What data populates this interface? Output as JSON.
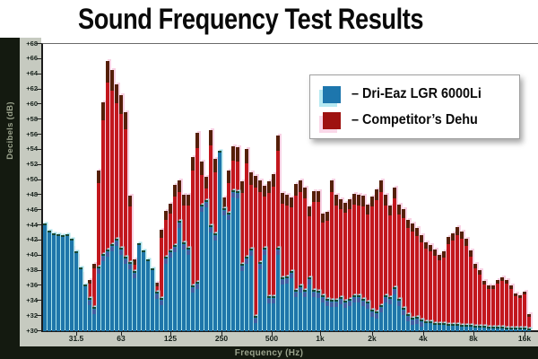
{
  "title": "Sound Frequency Test Results",
  "legend": {
    "items": [
      {
        "label": "– Dri-Eaz LGR 6000Li",
        "color": "#1d76ad",
        "halo": "#b6e9f2"
      },
      {
        "label": "– Competitor’s Dehu",
        "color": "#9e1210",
        "halo": "#fad8e8"
      }
    ]
  },
  "chart_data": {
    "type": "bar",
    "title": "Sound Frequency Test Results",
    "xlabel": "Frequency (Hz)",
    "ylabel": "Decibels (dB)",
    "x_scale": "log, narrow-band bars (~1/11 octave) from ~20 Hz to 16 kHz",
    "x_tick_labels": [
      "31.5",
      "63",
      "125",
      "250",
      "500",
      "1k",
      "2k",
      "4k",
      "8k",
      "16k"
    ],
    "y_tick_labels": [
      "+68",
      "+66",
      "+64",
      "+62",
      "+60",
      "+58",
      "+56",
      "+54",
      "+52",
      "+50",
      "+48",
      "+46",
      "+44",
      "+42",
      "+40",
      "+38",
      "+36",
      "+34",
      "+32",
      "+30"
    ],
    "ylim": [
      30,
      68
    ],
    "grid": false,
    "legend_position": "top-right",
    "series": [
      {
        "name": "Dri-Eaz LGR 6000Li",
        "color": "#1e76aa",
        "values": [
          44.2,
          43.3,
          42.9,
          42.8,
          42.7,
          42.8,
          42.2,
          40.6,
          38.4,
          36.2,
          34.4,
          33.2,
          38.6,
          40.2,
          40.8,
          41.5,
          42.2,
          41.0,
          39.8,
          39.1,
          37.9,
          41.6,
          40.7,
          39.5,
          38.3,
          35.2,
          34.4,
          39.9,
          40.7,
          41.4,
          44.6,
          41.8,
          41.0,
          36.0,
          36.5,
          46.7,
          47.3,
          44.0,
          43.0,
          53.9,
          46.3,
          45.7,
          48.7,
          48.5,
          38.9,
          39.9,
          40.9,
          32.0,
          39.1,
          41.0,
          34.6,
          34.6,
          41.0,
          37.1,
          37.3,
          37.9,
          35.5,
          36.0,
          35.5,
          37.1,
          35.5,
          35.4,
          34.8,
          34.3,
          34.1,
          34.2,
          34.5,
          34.0,
          34.3,
          34.7,
          34.7,
          34.3,
          33.9,
          32.8,
          32.6,
          33.5,
          34.8,
          34.5,
          35.8,
          34.3,
          33.1,
          32.3,
          31.8,
          31.9,
          31.5,
          31.3,
          31.3,
          31.1,
          31.1,
          31.1,
          30.9,
          30.9,
          30.9,
          30.8,
          30.8,
          30.8,
          30.7,
          30.7,
          30.7,
          30.6,
          30.6,
          30.6,
          30.6,
          30.5,
          30.5,
          30.5,
          30.5,
          30.5,
          30.4
        ]
      },
      {
        "name": "Competitor’s Dehu",
        "color": "#c2171d",
        "values": [
          43.0,
          42.0,
          41.8,
          41.6,
          41.4,
          41.2,
          41.0,
          40.0,
          37.6,
          35.4,
          36.8,
          38.9,
          51.2,
          60.3,
          65.8,
          64.6,
          62.6,
          61.2,
          59.0,
          47.9,
          39.5,
          35.5,
          34.5,
          34.0,
          36.4,
          36.4,
          43.4,
          45.9,
          46.9,
          49.4,
          50.0,
          48.1,
          48.1,
          53.0,
          56.3,
          52.4,
          50.4,
          56.6,
          52.8,
          47.0,
          47.7,
          51.2,
          54.5,
          54.3,
          49.8,
          54.1,
          51.0,
          50.6,
          50.0,
          49.2,
          49.8,
          50.8,
          55.9,
          48.3,
          48.1,
          47.7,
          49.5,
          50.0,
          49.0,
          46.5,
          48.5,
          48.5,
          45.5,
          45.8,
          50.0,
          48.0,
          47.5,
          47.0,
          47.5,
          48.2,
          48.1,
          47.9,
          46.8,
          47.8,
          48.8,
          50.0,
          48.0,
          46.6,
          49.0,
          46.8,
          46.2,
          44.7,
          44.2,
          43.6,
          42.7,
          41.7,
          41.4,
          40.8,
          40.1,
          40.6,
          42.5,
          43.0,
          43.8,
          43.2,
          42.2,
          40.7,
          38.9,
          38.1,
          36.6,
          36.0,
          36.0,
          36.8,
          37.1,
          36.8,
          36.0,
          35.0,
          34.8,
          35.2,
          32.3
        ]
      }
    ]
  },
  "colors": {
    "frame": "#141a10",
    "tick_band": "#c6cac0",
    "axis_title_text": "#9aa28c",
    "tick_text": "#15201a",
    "plot_bg": "#ffffff",
    "blue_bar": "#1e76aa",
    "blue_cap": "#174733",
    "blue_halo": "#a9e2ea",
    "red_bar": "#c2171d",
    "red_cap": "#551f08",
    "red_halo": "#f8d2e4"
  }
}
